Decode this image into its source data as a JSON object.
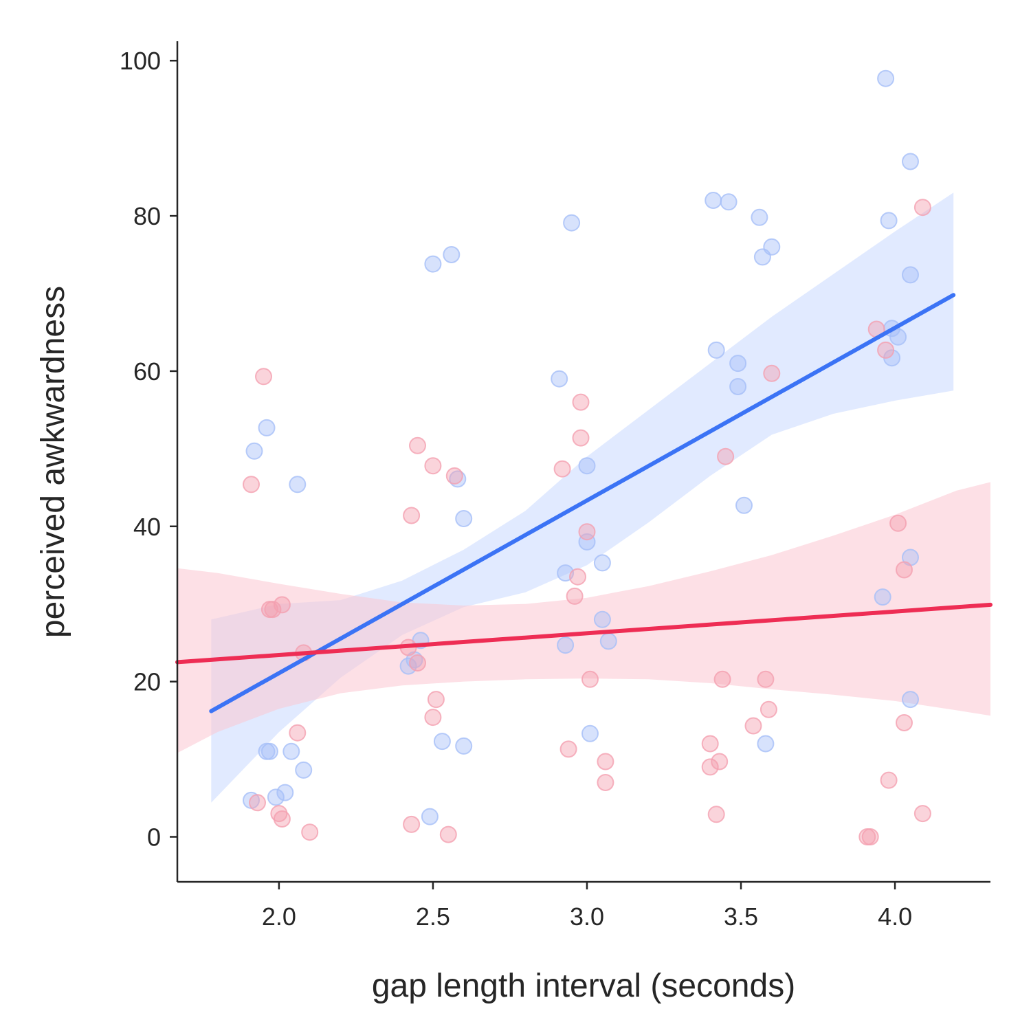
{
  "chart_data": {
    "type": "scatter",
    "title": "",
    "xlabel": "gap length interval (seconds)",
    "ylabel": "perceived awkwardness",
    "xlim": [
      1.67,
      4.31
    ],
    "ylim": [
      -5.8,
      102.5
    ],
    "xticks": [
      2.0,
      2.5,
      3.0,
      3.5,
      4.0
    ],
    "xtick_labels": [
      "2.0",
      "2.5",
      "3.0",
      "3.5",
      "4.0"
    ],
    "yticks": [
      0,
      20,
      40,
      60,
      80,
      100
    ],
    "ytick_labels": [
      "0",
      "20",
      "40",
      "60",
      "80",
      "100"
    ],
    "grid": false,
    "legend": "none",
    "series": [
      {
        "color": "#3b73f5",
        "band_color": "#c9d9ff",
        "point_color": "#a6bff8",
        "fit": {
          "x": [
            1.78,
            4.19
          ],
          "y": [
            16.2,
            69.8
          ]
        },
        "ci": {
          "x": [
            1.78,
            2.0,
            2.2,
            2.4,
            2.6,
            2.8,
            3.0,
            3.2,
            3.4,
            3.6,
            3.8,
            4.0,
            4.19
          ],
          "lower": [
            4.4,
            13.5,
            20.5,
            26.0,
            29.6,
            31.5,
            35.0,
            40.5,
            46.5,
            51.8,
            54.5,
            56.2,
            57.5
          ],
          "upper": [
            28.0,
            30.0,
            30.5,
            33.0,
            37.0,
            42.0,
            49.0,
            55.0,
            61.0,
            67.0,
            72.5,
            78.0,
            83.0
          ]
        },
        "points": [
          {
            "x": 1.91,
            "y": 4.7
          },
          {
            "x": 1.92,
            "y": 49.7
          },
          {
            "x": 1.96,
            "y": 52.7
          },
          {
            "x": 1.96,
            "y": 11.0
          },
          {
            "x": 1.97,
            "y": 11.0
          },
          {
            "x": 1.99,
            "y": 5.1
          },
          {
            "x": 2.02,
            "y": 5.7
          },
          {
            "x": 2.04,
            "y": 11.0
          },
          {
            "x": 2.06,
            "y": 45.4
          },
          {
            "x": 2.08,
            "y": 8.6
          },
          {
            "x": 2.42,
            "y": 22.0
          },
          {
            "x": 2.44,
            "y": 22.8
          },
          {
            "x": 2.46,
            "y": 25.3
          },
          {
            "x": 2.49,
            "y": 2.6
          },
          {
            "x": 2.5,
            "y": 73.8
          },
          {
            "x": 2.53,
            "y": 12.3
          },
          {
            "x": 2.56,
            "y": 75.0
          },
          {
            "x": 2.58,
            "y": 46.1
          },
          {
            "x": 2.6,
            "y": 41.0
          },
          {
            "x": 2.6,
            "y": 11.7
          },
          {
            "x": 2.91,
            "y": 59.0
          },
          {
            "x": 2.93,
            "y": 34.0
          },
          {
            "x": 2.93,
            "y": 24.7
          },
          {
            "x": 2.95,
            "y": 79.1
          },
          {
            "x": 3.0,
            "y": 38.0
          },
          {
            "x": 3.0,
            "y": 47.8
          },
          {
            "x": 3.01,
            "y": 13.3
          },
          {
            "x": 3.05,
            "y": 28.0
          },
          {
            "x": 3.05,
            "y": 35.3
          },
          {
            "x": 3.07,
            "y": 25.2
          },
          {
            "x": 3.41,
            "y": 82.0
          },
          {
            "x": 3.42,
            "y": 62.7
          },
          {
            "x": 3.46,
            "y": 81.8
          },
          {
            "x": 3.49,
            "y": 61.0
          },
          {
            "x": 3.49,
            "y": 58.0
          },
          {
            "x": 3.51,
            "y": 42.7
          },
          {
            "x": 3.56,
            "y": 79.8
          },
          {
            "x": 3.57,
            "y": 74.7
          },
          {
            "x": 3.58,
            "y": 12.0
          },
          {
            "x": 3.6,
            "y": 76.0
          },
          {
            "x": 3.96,
            "y": 30.9
          },
          {
            "x": 3.97,
            "y": 97.7
          },
          {
            "x": 3.98,
            "y": 79.4
          },
          {
            "x": 3.99,
            "y": 61.7
          },
          {
            "x": 3.99,
            "y": 65.5
          },
          {
            "x": 4.01,
            "y": 64.4
          },
          {
            "x": 4.05,
            "y": 72.4
          },
          {
            "x": 4.05,
            "y": 87.0
          },
          {
            "x": 4.05,
            "y": 36.0
          },
          {
            "x": 4.05,
            "y": 17.7
          }
        ]
      },
      {
        "color": "#ee2d54",
        "band_color": "#fbc6d1",
        "point_color": "#f4a0b0",
        "fit": {
          "x": [
            1.67,
            4.31
          ],
          "y": [
            22.5,
            29.9
          ]
        },
        "ci": {
          "x": [
            1.67,
            1.8,
            2.0,
            2.2,
            2.4,
            2.6,
            2.8,
            3.0,
            3.2,
            3.4,
            3.6,
            3.8,
            4.0,
            4.2,
            4.31
          ],
          "lower": [
            10.8,
            13.5,
            16.5,
            18.5,
            19.5,
            20.0,
            20.3,
            20.4,
            20.3,
            19.8,
            19.0,
            18.3,
            17.5,
            16.3,
            15.6
          ],
          "upper": [
            34.6,
            34.0,
            32.6,
            31.3,
            30.2,
            29.8,
            30.0,
            30.8,
            32.3,
            34.2,
            36.3,
            38.8,
            41.5,
            44.6,
            45.7
          ]
        },
        "points": [
          {
            "x": 1.91,
            "y": 45.4
          },
          {
            "x": 1.93,
            "y": 4.4
          },
          {
            "x": 1.95,
            "y": 59.3
          },
          {
            "x": 1.97,
            "y": 29.3
          },
          {
            "x": 1.98,
            "y": 29.3
          },
          {
            "x": 2.0,
            "y": 3.0
          },
          {
            "x": 2.01,
            "y": 29.9
          },
          {
            "x": 2.01,
            "y": 2.3
          },
          {
            "x": 2.06,
            "y": 13.4
          },
          {
            "x": 2.08,
            "y": 23.7
          },
          {
            "x": 2.1,
            "y": 0.6
          },
          {
            "x": 2.42,
            "y": 24.4
          },
          {
            "x": 2.43,
            "y": 41.4
          },
          {
            "x": 2.43,
            "y": 1.6
          },
          {
            "x": 2.45,
            "y": 50.4
          },
          {
            "x": 2.45,
            "y": 22.4
          },
          {
            "x": 2.5,
            "y": 47.8
          },
          {
            "x": 2.5,
            "y": 15.4
          },
          {
            "x": 2.51,
            "y": 17.7
          },
          {
            "x": 2.55,
            "y": 0.3
          },
          {
            "x": 2.57,
            "y": 46.5
          },
          {
            "x": 2.92,
            "y": 47.4
          },
          {
            "x": 2.94,
            "y": 11.3
          },
          {
            "x": 2.96,
            "y": 31.0
          },
          {
            "x": 2.97,
            "y": 33.5
          },
          {
            "x": 2.98,
            "y": 56.0
          },
          {
            "x": 2.98,
            "y": 51.4
          },
          {
            "x": 3.0,
            "y": 39.3
          },
          {
            "x": 3.01,
            "y": 20.3
          },
          {
            "x": 3.06,
            "y": 9.7
          },
          {
            "x": 3.06,
            "y": 7.0
          },
          {
            "x": 3.4,
            "y": 12.0
          },
          {
            "x": 3.4,
            "y": 9.0
          },
          {
            "x": 3.42,
            "y": 2.9
          },
          {
            "x": 3.43,
            "y": 9.7
          },
          {
            "x": 3.44,
            "y": 20.3
          },
          {
            "x": 3.45,
            "y": 49.0
          },
          {
            "x": 3.54,
            "y": 14.3
          },
          {
            "x": 3.58,
            "y": 20.3
          },
          {
            "x": 3.59,
            "y": 16.4
          },
          {
            "x": 3.6,
            "y": 59.7
          },
          {
            "x": 3.91,
            "y": 0.0
          },
          {
            "x": 3.92,
            "y": 0.0
          },
          {
            "x": 3.94,
            "y": 65.4
          },
          {
            "x": 3.97,
            "y": 62.7
          },
          {
            "x": 3.98,
            "y": 7.3
          },
          {
            "x": 4.01,
            "y": 40.4
          },
          {
            "x": 4.03,
            "y": 34.4
          },
          {
            "x": 4.03,
            "y": 14.7
          },
          {
            "x": 4.09,
            "y": 3.0
          },
          {
            "x": 4.09,
            "y": 81.1
          }
        ]
      }
    ]
  }
}
